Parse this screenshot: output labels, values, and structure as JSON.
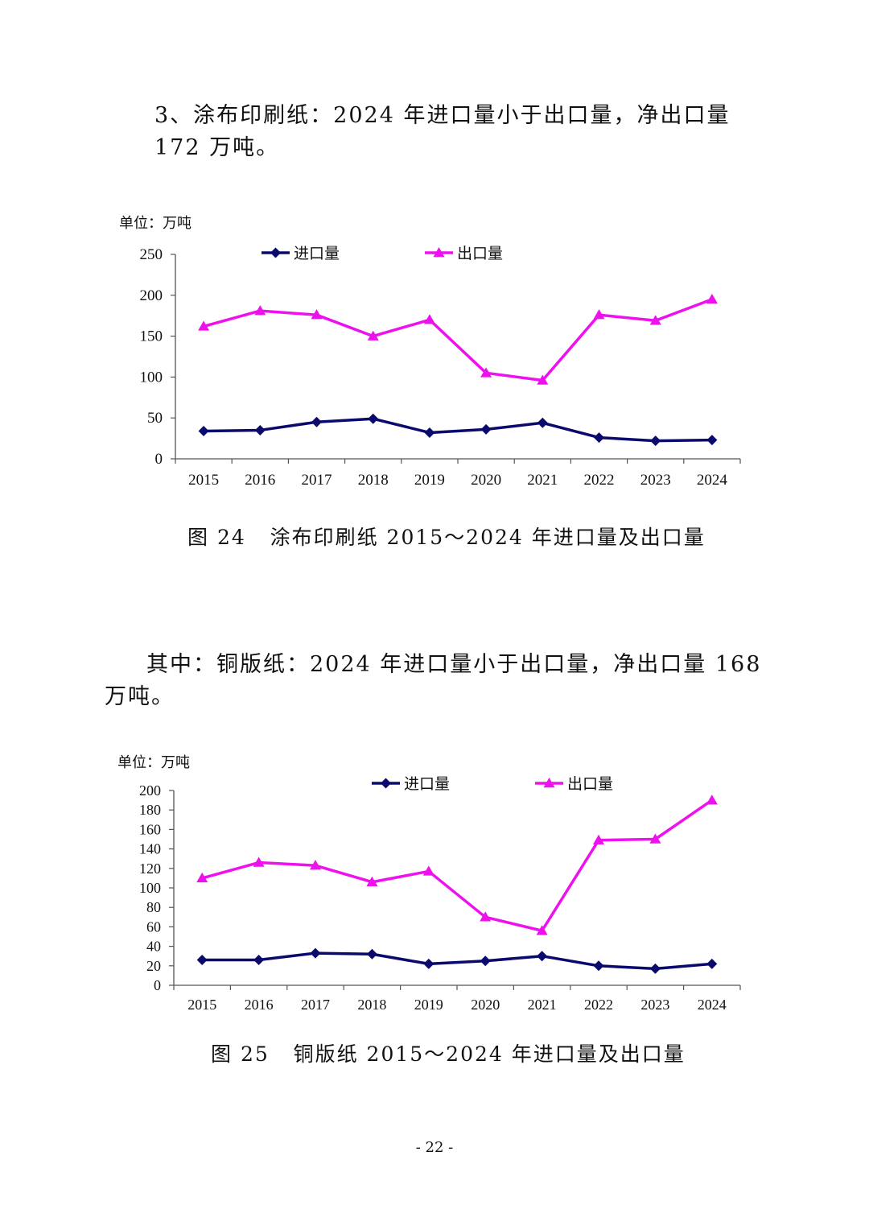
{
  "paragraphs": {
    "p1": "3、涂布印刷纸：2024 年进口量小于出口量，净出口量 172 万吨。",
    "p2": "其中：铜版纸：2024 年进口量小于出口量，净出口量 168 万吨。"
  },
  "captions": {
    "c1": "图 24   涂布印刷纸 2015～2024 年进口量及出口量",
    "c2": "图 25   铜版纸 2015～2024 年进口量及出口量"
  },
  "page_number": "- 22 -",
  "colors": {
    "import": "#0a0a6e",
    "export": "#ee11ee"
  },
  "chart_data": [
    {
      "type": "line",
      "unit_label": "单位：万吨",
      "categories": [
        "2015",
        "2016",
        "2017",
        "2018",
        "2019",
        "2020",
        "2021",
        "2022",
        "2023",
        "2024"
      ],
      "series": [
        {
          "name": "进口量",
          "marker": "diamond",
          "values": [
            34,
            35,
            45,
            49,
            32,
            36,
            44,
            26,
            22,
            23
          ]
        },
        {
          "name": "出口量",
          "marker": "triangle",
          "values": [
            162,
            181,
            176,
            150,
            170,
            105,
            96,
            176,
            169,
            195
          ]
        }
      ],
      "ylim": [
        0,
        250
      ],
      "yticks": [
        0,
        50,
        100,
        150,
        200,
        250
      ],
      "legend": "top",
      "grid": false
    },
    {
      "type": "line",
      "unit_label": "单位：万吨",
      "categories": [
        "2015",
        "2016",
        "2017",
        "2018",
        "2019",
        "2020",
        "2021",
        "2022",
        "2023",
        "2024"
      ],
      "series": [
        {
          "name": "进口量",
          "marker": "diamond",
          "values": [
            26,
            26,
            33,
            32,
            22,
            25,
            30,
            20,
            17,
            22
          ]
        },
        {
          "name": "出口量",
          "marker": "triangle",
          "values": [
            110,
            126,
            123,
            106,
            117,
            70,
            56,
            149,
            150,
            190
          ]
        }
      ],
      "ylim": [
        0,
        200
      ],
      "yticks": [
        0,
        20,
        40,
        60,
        80,
        100,
        120,
        140,
        160,
        180,
        200
      ],
      "legend": "top",
      "grid": false
    }
  ]
}
